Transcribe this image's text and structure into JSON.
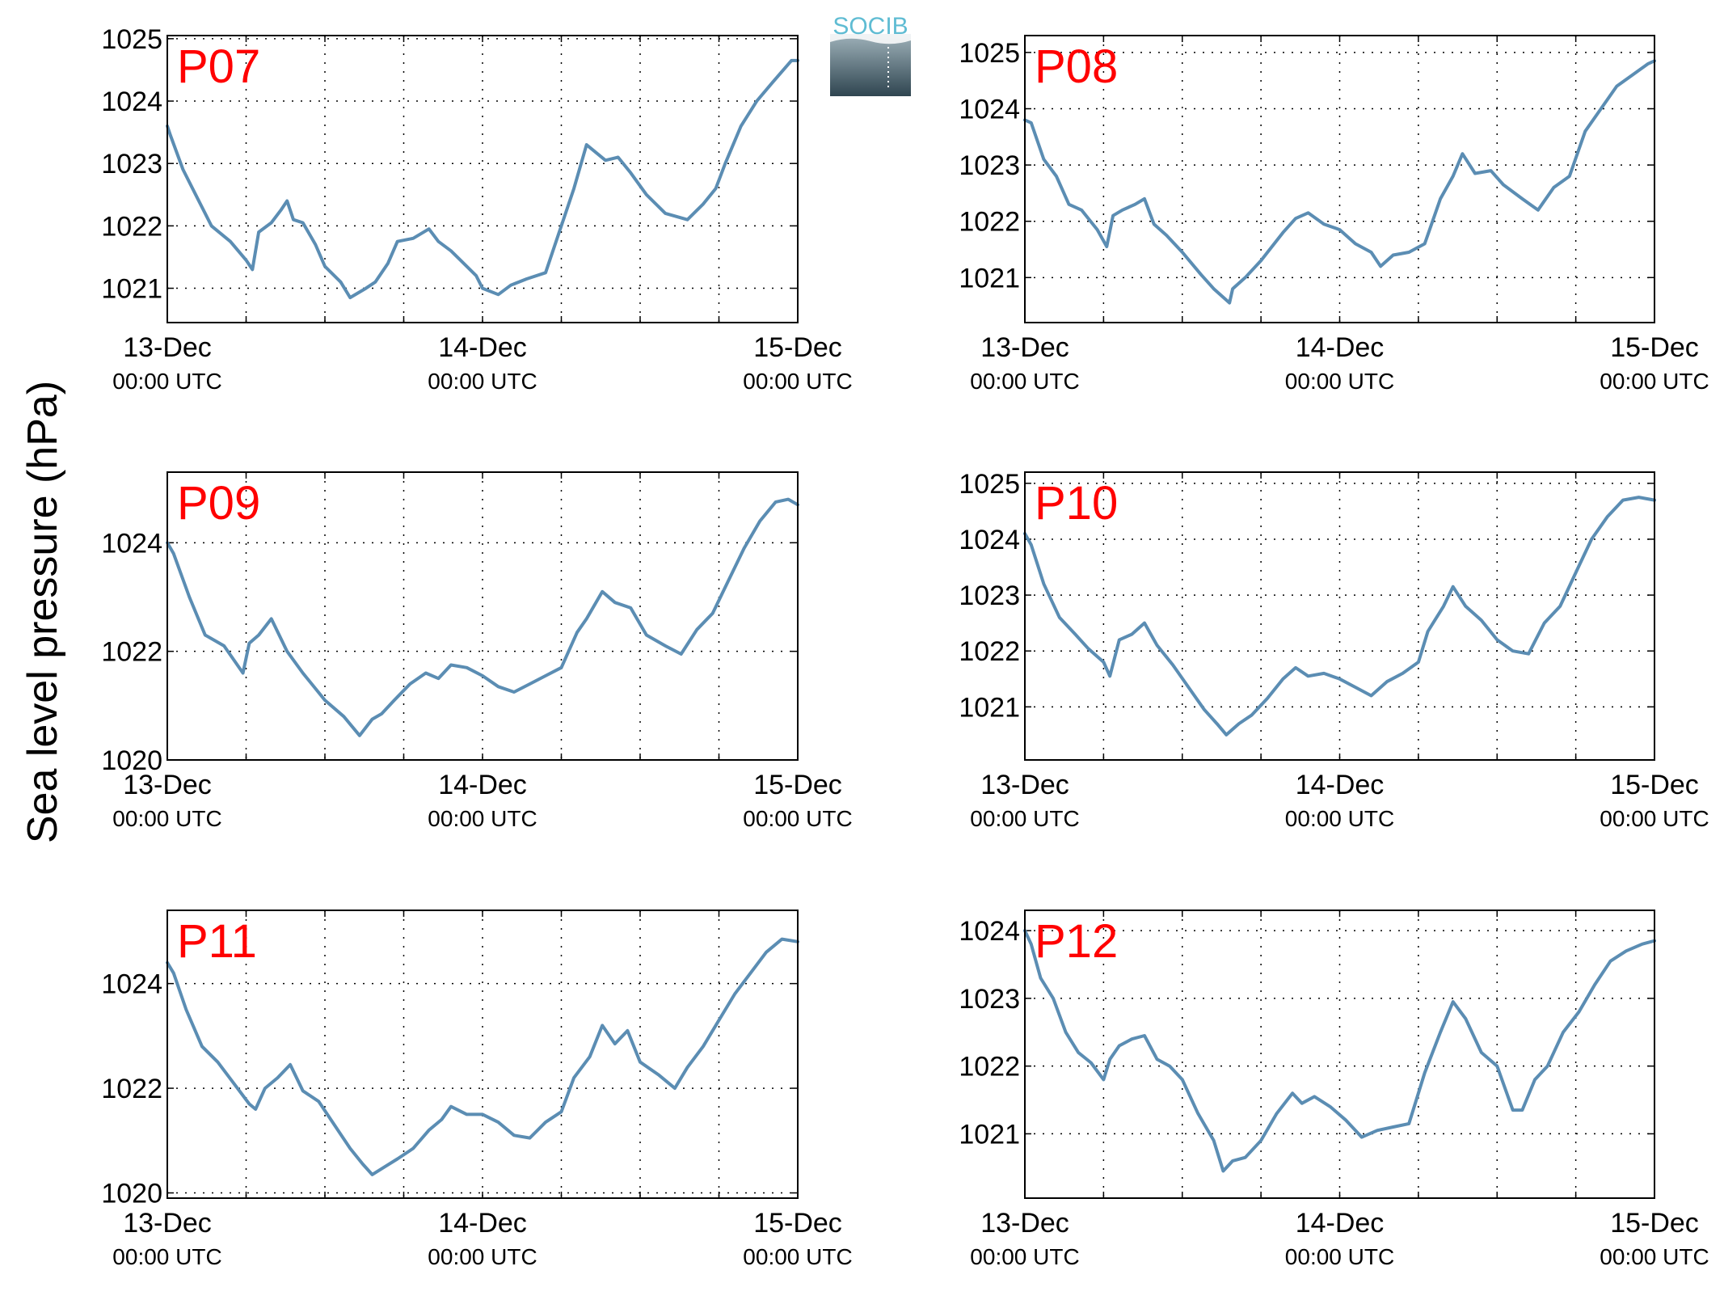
{
  "figure": {
    "ylabel": "Sea level pressure (hPa)",
    "logo": {
      "text": "SOCIB",
      "color_top": "#5fbcd3",
      "color_bottom": "#2f4550"
    }
  },
  "chart_data": [
    {
      "type": "line",
      "panel_label": "P07",
      "x_days": [
        0,
        0.01,
        0.05,
        0.09,
        0.14,
        0.2,
        0.25,
        0.27,
        0.29,
        0.33,
        0.36,
        0.38,
        0.4,
        0.43,
        0.47,
        0.5,
        0.55,
        0.58,
        0.63,
        0.66,
        0.7,
        0.73,
        0.78,
        0.83,
        0.86,
        0.9,
        0.93,
        0.98,
        1.0,
        1.05,
        1.09,
        1.14,
        1.2,
        1.25,
        1.29,
        1.33,
        1.39,
        1.43,
        1.47,
        1.52,
        1.58,
        1.65,
        1.7,
        1.74,
        1.77,
        1.82,
        1.87,
        1.92,
        1.98,
        2.0
      ],
      "series": [
        {
          "color": "#5b8db3",
          "values": [
            1023.6,
            1023.45,
            1022.9,
            1022.5,
            1022.0,
            1021.75,
            1021.45,
            1021.3,
            1021.9,
            1022.05,
            1022.25,
            1022.4,
            1022.1,
            1022.05,
            1021.7,
            1021.35,
            1021.1,
            1020.85,
            1021.0,
            1021.1,
            1021.4,
            1021.75,
            1021.8,
            1021.95,
            1021.75,
            1021.6,
            1021.45,
            1021.2,
            1021.0,
            1020.9,
            1021.05,
            1021.15,
            1021.25,
            1022.0,
            1022.6,
            1023.3,
            1023.05,
            1023.1,
            1022.85,
            1022.5,
            1022.2,
            1022.1,
            1022.35,
            1022.6,
            1023.0,
            1023.6,
            1024.0,
            1024.3,
            1024.65,
            1024.65
          ]
        }
      ],
      "y_ticks": [
        1021,
        1022,
        1023,
        1024,
        1025
      ],
      "ylim": [
        1020.45,
        1025.05
      ],
      "xlim": [
        0,
        2
      ],
      "x_ticks": [
        {
          "date": "13-Dec",
          "time": "00:00 UTC"
        },
        {
          "date": "14-Dec",
          "time": "00:00 UTC"
        },
        {
          "date": "15-Dec",
          "time": "00:00 UTC"
        }
      ],
      "grid": true
    },
    {
      "type": "line",
      "panel_label": "P08",
      "x_days": [
        0,
        0.02,
        0.06,
        0.1,
        0.14,
        0.18,
        0.23,
        0.26,
        0.28,
        0.31,
        0.35,
        0.38,
        0.41,
        0.45,
        0.5,
        0.56,
        0.6,
        0.65,
        0.66,
        0.7,
        0.75,
        0.82,
        0.86,
        0.9,
        0.95,
        1.0,
        1.05,
        1.1,
        1.13,
        1.17,
        1.22,
        1.27,
        1.32,
        1.36,
        1.39,
        1.43,
        1.48,
        1.52,
        1.58,
        1.63,
        1.68,
        1.73,
        1.78,
        1.83,
        1.88,
        1.93,
        1.98,
        2.0
      ],
      "series": [
        {
          "color": "#5b8db3",
          "values": [
            1023.8,
            1023.75,
            1023.1,
            1022.8,
            1022.3,
            1022.2,
            1021.85,
            1021.55,
            1022.1,
            1022.2,
            1022.3,
            1022.4,
            1021.95,
            1021.75,
            1021.45,
            1021.05,
            1020.8,
            1020.55,
            1020.8,
            1021.0,
            1021.3,
            1021.8,
            1022.05,
            1022.15,
            1021.95,
            1021.85,
            1021.6,
            1021.45,
            1021.2,
            1021.4,
            1021.45,
            1021.6,
            1022.4,
            1022.8,
            1023.2,
            1022.85,
            1022.9,
            1022.65,
            1022.4,
            1022.2,
            1022.6,
            1022.8,
            1023.6,
            1024.0,
            1024.4,
            1024.6,
            1024.8,
            1024.85
          ]
        }
      ],
      "y_ticks": [
        1021,
        1022,
        1023,
        1024,
        1025
      ],
      "ylim": [
        1020.2,
        1025.3
      ],
      "xlim": [
        0,
        2
      ],
      "x_ticks": [
        {
          "date": "13-Dec",
          "time": "00:00 UTC"
        },
        {
          "date": "14-Dec",
          "time": "00:00 UTC"
        },
        {
          "date": "15-Dec",
          "time": "00:00 UTC"
        }
      ],
      "grid": true
    },
    {
      "type": "line",
      "panel_label": "P09",
      "x_days": [
        0,
        0.02,
        0.07,
        0.12,
        0.18,
        0.24,
        0.26,
        0.29,
        0.33,
        0.38,
        0.43,
        0.5,
        0.56,
        0.61,
        0.65,
        0.68,
        0.72,
        0.77,
        0.82,
        0.86,
        0.9,
        0.95,
        1.0,
        1.05,
        1.1,
        1.15,
        1.2,
        1.25,
        1.3,
        1.33,
        1.38,
        1.42,
        1.47,
        1.52,
        1.58,
        1.63,
        1.68,
        1.73,
        1.78,
        1.83,
        1.88,
        1.93,
        1.97,
        2.0
      ],
      "series": [
        {
          "color": "#5b8db3",
          "values": [
            1024.0,
            1023.8,
            1023.0,
            1022.3,
            1022.1,
            1021.6,
            1022.15,
            1022.3,
            1022.6,
            1022.0,
            1021.6,
            1021.1,
            1020.8,
            1020.45,
            1020.75,
            1020.85,
            1021.1,
            1021.4,
            1021.6,
            1021.5,
            1021.75,
            1021.7,
            1021.55,
            1021.35,
            1021.25,
            1021.4,
            1021.55,
            1021.7,
            1022.35,
            1022.6,
            1023.1,
            1022.9,
            1022.8,
            1022.3,
            1022.1,
            1021.95,
            1022.4,
            1022.7,
            1023.3,
            1023.9,
            1024.4,
            1024.75,
            1024.8,
            1024.7
          ]
        }
      ],
      "y_ticks": [
        1020,
        1022,
        1024
      ],
      "ylim": [
        1020.0,
        1025.3
      ],
      "xlim": [
        0,
        2
      ],
      "x_ticks": [
        {
          "date": "13-Dec",
          "time": "00:00 UTC"
        },
        {
          "date": "14-Dec",
          "time": "00:00 UTC"
        },
        {
          "date": "15-Dec",
          "time": "00:00 UTC"
        }
      ],
      "grid": true
    },
    {
      "type": "line",
      "panel_label": "P10",
      "x_days": [
        0,
        0.02,
        0.06,
        0.11,
        0.16,
        0.2,
        0.25,
        0.27,
        0.3,
        0.34,
        0.38,
        0.42,
        0.47,
        0.52,
        0.57,
        0.61,
        0.64,
        0.68,
        0.72,
        0.77,
        0.82,
        0.86,
        0.9,
        0.95,
        1.0,
        1.05,
        1.1,
        1.15,
        1.2,
        1.25,
        1.28,
        1.33,
        1.36,
        1.4,
        1.45,
        1.5,
        1.55,
        1.6,
        1.65,
        1.7,
        1.75,
        1.8,
        1.85,
        1.9,
        1.95,
        2.0
      ],
      "series": [
        {
          "color": "#5b8db3",
          "values": [
            1024.1,
            1023.9,
            1023.2,
            1022.6,
            1022.3,
            1022.05,
            1021.8,
            1021.55,
            1022.2,
            1022.3,
            1022.5,
            1022.1,
            1021.75,
            1021.35,
            1020.95,
            1020.7,
            1020.5,
            1020.7,
            1020.85,
            1021.15,
            1021.5,
            1021.7,
            1021.55,
            1021.6,
            1021.5,
            1021.35,
            1021.2,
            1021.45,
            1021.6,
            1021.8,
            1022.35,
            1022.8,
            1023.15,
            1022.8,
            1022.55,
            1022.2,
            1022.0,
            1021.95,
            1022.5,
            1022.8,
            1023.4,
            1024.0,
            1024.4,
            1024.7,
            1024.75,
            1024.7
          ]
        }
      ],
      "y_ticks": [
        1021,
        1022,
        1023,
        1024,
        1025
      ],
      "ylim": [
        1020.05,
        1025.2
      ],
      "xlim": [
        0,
        2
      ],
      "x_ticks": [
        {
          "date": "13-Dec",
          "time": "00:00 UTC"
        },
        {
          "date": "14-Dec",
          "time": "00:00 UTC"
        },
        {
          "date": "15-Dec",
          "time": "00:00 UTC"
        }
      ],
      "grid": true
    },
    {
      "type": "line",
      "panel_label": "P11",
      "x_days": [
        0,
        0.02,
        0.06,
        0.11,
        0.16,
        0.21,
        0.26,
        0.28,
        0.31,
        0.35,
        0.39,
        0.43,
        0.48,
        0.53,
        0.58,
        0.62,
        0.65,
        0.69,
        0.73,
        0.78,
        0.83,
        0.87,
        0.9,
        0.95,
        1.0,
        1.05,
        1.1,
        1.15,
        1.2,
        1.25,
        1.29,
        1.34,
        1.38,
        1.42,
        1.46,
        1.5,
        1.56,
        1.61,
        1.65,
        1.7,
        1.75,
        1.8,
        1.85,
        1.9,
        1.95,
        2.0
      ],
      "series": [
        {
          "color": "#5b8db3",
          "values": [
            1024.4,
            1024.2,
            1023.5,
            1022.8,
            1022.5,
            1022.1,
            1021.7,
            1021.6,
            1022.0,
            1022.2,
            1022.45,
            1021.95,
            1021.75,
            1021.3,
            1020.85,
            1020.55,
            1020.35,
            1020.5,
            1020.65,
            1020.85,
            1021.2,
            1021.4,
            1021.65,
            1021.5,
            1021.5,
            1021.35,
            1021.1,
            1021.05,
            1021.35,
            1021.55,
            1022.2,
            1022.6,
            1023.2,
            1022.85,
            1023.1,
            1022.5,
            1022.25,
            1022.0,
            1022.4,
            1022.8,
            1023.3,
            1023.8,
            1024.2,
            1024.6,
            1024.85,
            1024.8
          ]
        }
      ],
      "y_ticks": [
        1020,
        1022,
        1024
      ],
      "ylim": [
        1019.9,
        1025.4
      ],
      "xlim": [
        0,
        2
      ],
      "x_ticks": [
        {
          "date": "13-Dec",
          "time": "00:00 UTC"
        },
        {
          "date": "14-Dec",
          "time": "00:00 UTC"
        },
        {
          "date": "15-Dec",
          "time": "00:00 UTC"
        }
      ],
      "grid": true
    },
    {
      "type": "line",
      "panel_label": "P12",
      "x_days": [
        0,
        0.02,
        0.05,
        0.09,
        0.13,
        0.17,
        0.21,
        0.25,
        0.27,
        0.3,
        0.34,
        0.38,
        0.42,
        0.46,
        0.5,
        0.55,
        0.6,
        0.63,
        0.66,
        0.7,
        0.75,
        0.8,
        0.85,
        0.88,
        0.92,
        0.97,
        1.02,
        1.07,
        1.12,
        1.17,
        1.22,
        1.27,
        1.32,
        1.36,
        1.4,
        1.45,
        1.5,
        1.55,
        1.58,
        1.62,
        1.66,
        1.71,
        1.76,
        1.81,
        1.86,
        1.91,
        1.96,
        2.0
      ],
      "series": [
        {
          "color": "#5b8db3",
          "values": [
            1024.0,
            1023.8,
            1023.3,
            1023.0,
            1022.5,
            1022.2,
            1022.05,
            1021.8,
            1022.1,
            1022.3,
            1022.4,
            1022.45,
            1022.1,
            1022.0,
            1021.8,
            1021.3,
            1020.9,
            1020.45,
            1020.6,
            1020.65,
            1020.9,
            1021.3,
            1021.6,
            1021.45,
            1021.55,
            1021.4,
            1021.2,
            1020.95,
            1021.05,
            1021.1,
            1021.15,
            1021.9,
            1022.5,
            1022.95,
            1022.7,
            1022.2,
            1022.0,
            1021.35,
            1021.35,
            1021.8,
            1022.0,
            1022.5,
            1022.8,
            1023.2,
            1023.55,
            1023.7,
            1023.8,
            1023.85
          ]
        }
      ],
      "y_ticks": [
        1021,
        1022,
        1023,
        1024
      ],
      "ylim": [
        1020.05,
        1024.3
      ],
      "xlim": [
        0,
        2
      ],
      "x_ticks": [
        {
          "date": "13-Dec",
          "time": "00:00 UTC"
        },
        {
          "date": "14-Dec",
          "time": "00:00 UTC"
        },
        {
          "date": "15-Dec",
          "time": "00:00 UTC"
        }
      ],
      "grid": true
    }
  ]
}
